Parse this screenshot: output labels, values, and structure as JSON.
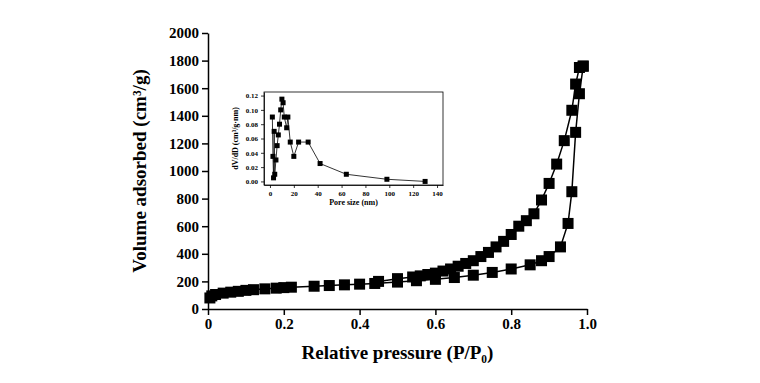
{
  "chart_data": [
    {
      "type": "line",
      "x_label": "Relative pressure (P/P₀)",
      "y_label": "Volume adsorbed (cm³/g)",
      "xlim": [
        0,
        1
      ],
      "xticks": [
        0,
        0.2,
        0.4,
        0.6,
        0.8,
        {
          "value": 1,
          "label": "1.0"
        }
      ],
      "ylim": [
        0,
        2000
      ],
      "yticks": [
        0,
        200,
        400,
        600,
        800,
        1000,
        1200,
        1400,
        1600,
        1800,
        2000
      ],
      "series": [
        {
          "color": "#000000",
          "marker": "square",
          "line_style": "solid",
          "x": [
            0.005,
            0.01,
            0.02,
            0.04,
            0.06,
            0.08,
            0.1,
            0.12,
            0.15,
            0.18,
            0.2,
            0.22,
            0.28,
            0.32,
            0.36,
            0.4,
            0.44,
            0.5,
            0.55,
            0.6,
            0.65,
            0.7,
            0.75,
            0.8,
            0.85,
            0.88,
            0.9,
            0.93,
            0.95,
            0.96,
            0.97,
            0.98,
            0.99
          ],
          "values": [
            80,
            95,
            105,
            115,
            122,
            128,
            135,
            140,
            146,
            151,
            155,
            158,
            165,
            170,
            175,
            180,
            185,
            195,
            205,
            215,
            228,
            245,
            265,
            290,
            320,
            350,
            380,
            450,
            620,
            850,
            1280,
            1560,
            1760
          ]
        },
        {
          "color": "#000000",
          "marker": "square",
          "line_style": "solid",
          "x": [
            0.99,
            0.98,
            0.97,
            0.96,
            0.94,
            0.92,
            0.9,
            0.88,
            0.86,
            0.84,
            0.82,
            0.8,
            0.78,
            0.76,
            0.74,
            0.72,
            0.7,
            0.68,
            0.66,
            0.64,
            0.62,
            0.6,
            0.58,
            0.56,
            0.54,
            0.5,
            0.45
          ],
          "values": [
            1760,
            1750,
            1630,
            1440,
            1220,
            1050,
            910,
            790,
            690,
            640,
            600,
            540,
            490,
            450,
            410,
            380,
            350,
            330,
            310,
            290,
            275,
            260,
            250,
            240,
            232,
            220,
            200
          ]
        }
      ]
    },
    {
      "type": "line",
      "x_label": "Pore size (nm)",
      "y_label": "dV/dD (cm³/g·nm)",
      "xlim": [
        -5,
        145
      ],
      "xticks": [
        0,
        20,
        40,
        60,
        80,
        100,
        120,
        140
      ],
      "ylim": [
        -0.005,
        0.125
      ],
      "yticks": [
        {
          "value": 0,
          "label": "0.00"
        },
        {
          "value": 0.02,
          "label": "0.02"
        },
        {
          "value": 0.04,
          "label": "0.04"
        },
        {
          "value": 0.06,
          "label": "0.06"
        },
        {
          "value": 0.08,
          "label": "0.08"
        },
        {
          "value": 0.1,
          "label": "0.10"
        },
        {
          "value": 0.12,
          "label": "0.12"
        }
      ],
      "series": [
        {
          "color": "#000000",
          "marker": "square",
          "line_style": "solid",
          "x": [
            2,
            2.5,
            3,
            3.5,
            4,
            5,
            6,
            7,
            8,
            9,
            10,
            11,
            12,
            14,
            15,
            17,
            20,
            24,
            32,
            42,
            64,
            98,
            130
          ],
          "values": [
            0.09,
            0.035,
            0.005,
            0.07,
            0.01,
            0.03,
            0.05,
            0.065,
            0.08,
            0.1,
            0.115,
            0.11,
            0.09,
            0.075,
            0.09,
            0.055,
            0.035,
            0.055,
            0.055,
            0.025,
            0.01,
            0.003,
            0.0
          ]
        }
      ]
    }
  ]
}
